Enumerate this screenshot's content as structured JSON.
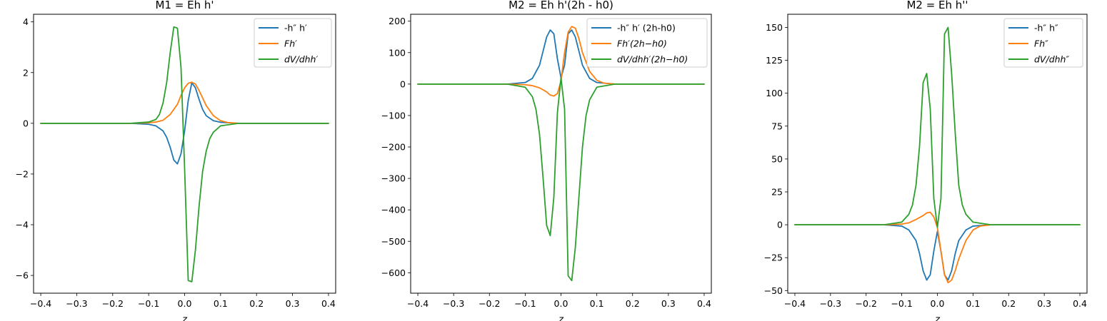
{
  "colors": {
    "blue": "#1f77b4",
    "orange": "#ff7f0e",
    "green": "#2ca02c"
  },
  "chart_data": [
    {
      "type": "line",
      "title": "M1 = Eh h'",
      "xlabel": "z",
      "ylabel": "",
      "xlim": [
        -0.42,
        0.42
      ],
      "ylim": [
        -6.7,
        4.3
      ],
      "xticks": [
        -0.4,
        -0.3,
        -0.2,
        -0.1,
        0.0,
        0.1,
        0.2,
        0.3,
        0.4
      ],
      "xtick_labels": [
        "−0.4",
        "−0.3",
        "−0.2",
        "−0.1",
        "0.0",
        "0.1",
        "0.2",
        "0.3",
        "0.4"
      ],
      "yticks": [
        -6,
        -4,
        -2,
        0,
        2,
        4
      ],
      "ytick_labels": [
        "−6",
        "−4",
        "−2",
        "0",
        "2",
        "4"
      ],
      "legend_position": "top-right",
      "series": [
        {
          "name": "-h'' h'",
          "color": "#1f77b4",
          "x": [
            -0.4,
            -0.15,
            -0.1,
            -0.08,
            -0.06,
            -0.05,
            -0.04,
            -0.03,
            -0.02,
            -0.01,
            0.0,
            0.01,
            0.02,
            0.03,
            0.04,
            0.05,
            0.06,
            0.08,
            0.1,
            0.15,
            0.4
          ],
          "y": [
            0,
            0,
            -0.04,
            -0.1,
            -0.3,
            -0.55,
            -0.95,
            -1.45,
            -1.6,
            -1.2,
            -0.3,
            0.9,
            1.6,
            1.4,
            0.95,
            0.55,
            0.3,
            0.1,
            0.04,
            0,
            0
          ]
        },
        {
          "name": "Fh'",
          "color": "#ff7f0e",
          "x": [
            -0.4,
            -0.15,
            -0.1,
            -0.08,
            -0.06,
            -0.04,
            -0.02,
            -0.01,
            0.0,
            0.01,
            0.02,
            0.03,
            0.04,
            0.05,
            0.06,
            0.08,
            0.1,
            0.12,
            0.15,
            0.4
          ],
          "y": [
            0,
            0,
            0.02,
            0.05,
            0.12,
            0.35,
            0.75,
            1.1,
            1.4,
            1.58,
            1.62,
            1.55,
            1.3,
            1.0,
            0.7,
            0.3,
            0.1,
            0.03,
            0,
            0
          ]
        },
        {
          "name": "dV/dhh'",
          "color": "#2ca02c",
          "x": [
            -0.4,
            -0.15,
            -0.1,
            -0.08,
            -0.07,
            -0.06,
            -0.05,
            -0.04,
            -0.03,
            -0.02,
            -0.01,
            0.0,
            0.01,
            0.02,
            0.03,
            0.04,
            0.05,
            0.06,
            0.07,
            0.08,
            0.1,
            0.15,
            0.4
          ],
          "y": [
            0,
            0,
            0.05,
            0.15,
            0.35,
            0.8,
            1.6,
            2.8,
            3.8,
            3.75,
            2.2,
            -1.8,
            -6.2,
            -6.25,
            -5.0,
            -3.3,
            -1.9,
            -1.1,
            -0.6,
            -0.35,
            -0.1,
            0,
            0
          ]
        }
      ]
    },
    {
      "type": "line",
      "title": "M2 = Eh h'(2h - h0)",
      "xlabel": "z",
      "ylabel": "",
      "xlim": [
        -0.42,
        0.42
      ],
      "ylim": [
        -665,
        222
      ],
      "xticks": [
        -0.4,
        -0.3,
        -0.2,
        -0.1,
        0.0,
        0.1,
        0.2,
        0.3,
        0.4
      ],
      "xtick_labels": [
        "−0.4",
        "−0.3",
        "−0.2",
        "−0.1",
        "0.0",
        "0.1",
        "0.2",
        "0.3",
        "0.4"
      ],
      "yticks": [
        -600,
        -500,
        -400,
        -300,
        -200,
        -100,
        0,
        100,
        200
      ],
      "ytick_labels": [
        "−600",
        "−500",
        "−400",
        "−300",
        "−200",
        "−100",
        "0",
        "100",
        "200"
      ],
      "legend_position": "top-right",
      "series": [
        {
          "name": "-h'' h' (2h-h0)",
          "color": "#1f77b4",
          "x": [
            -0.4,
            -0.15,
            -0.1,
            -0.08,
            -0.06,
            -0.05,
            -0.04,
            -0.03,
            -0.02,
            -0.01,
            0.0,
            0.01,
            0.02,
            0.03,
            0.04,
            0.05,
            0.06,
            0.08,
            0.1,
            0.15,
            0.4
          ],
          "y": [
            0,
            0,
            5,
            18,
            60,
            105,
            150,
            172,
            160,
            80,
            20,
            60,
            160,
            172,
            150,
            105,
            60,
            18,
            5,
            0,
            0
          ]
        },
        {
          "name": "Fh'(2h−h0)",
          "color": "#ff7f0e",
          "x": [
            -0.4,
            -0.15,
            -0.1,
            -0.08,
            -0.06,
            -0.04,
            -0.03,
            -0.02,
            -0.01,
            0.0,
            0.01,
            0.02,
            0.03,
            0.04,
            0.05,
            0.06,
            0.08,
            0.1,
            0.12,
            0.15,
            0.4
          ],
          "y": [
            0,
            0,
            -2,
            -5,
            -12,
            -25,
            -35,
            -38,
            -30,
            10,
            100,
            165,
            183,
            178,
            145,
            100,
            40,
            12,
            3,
            0,
            0
          ]
        },
        {
          "name": "dV/dhh'(2h−h0)",
          "color": "#2ca02c",
          "x": [
            -0.4,
            -0.15,
            -0.1,
            -0.08,
            -0.07,
            -0.06,
            -0.05,
            -0.04,
            -0.03,
            -0.02,
            -0.01,
            0.0,
            0.01,
            0.02,
            0.03,
            0.04,
            0.05,
            0.06,
            0.07,
            0.08,
            0.1,
            0.15,
            0.4
          ],
          "y": [
            0,
            0,
            -10,
            -40,
            -80,
            -160,
            -300,
            -450,
            -482,
            -360,
            -90,
            20,
            -80,
            -610,
            -625,
            -520,
            -360,
            -200,
            -100,
            -50,
            -10,
            0,
            0
          ]
        }
      ]
    },
    {
      "type": "line",
      "title": "M2 = Eh h''",
      "xlabel": "z",
      "ylabel": "",
      "xlim": [
        -0.42,
        0.42
      ],
      "ylim": [
        -52,
        160
      ],
      "xticks": [
        -0.4,
        -0.3,
        -0.2,
        -0.1,
        0.0,
        0.1,
        0.2,
        0.3,
        0.4
      ],
      "xtick_labels": [
        "−0.4",
        "−0.3",
        "−0.2",
        "−0.1",
        "0.0",
        "0.1",
        "0.2",
        "0.3",
        "0.4"
      ],
      "yticks": [
        -50,
        -25,
        0,
        25,
        50,
        75,
        100,
        125,
        150
      ],
      "ytick_labels": [
        "−50",
        "−25",
        "0",
        "25",
        "50",
        "75",
        "100",
        "125",
        "150"
      ],
      "legend_position": "top-right",
      "series": [
        {
          "name": "-h'' h''",
          "color": "#1f77b4",
          "x": [
            -0.4,
            -0.15,
            -0.1,
            -0.08,
            -0.06,
            -0.05,
            -0.04,
            -0.03,
            -0.02,
            -0.01,
            0.0,
            0.01,
            0.02,
            0.03,
            0.04,
            0.05,
            0.06,
            0.08,
            0.1,
            0.15,
            0.4
          ],
          "y": [
            0,
            0,
            -1,
            -4,
            -12,
            -22,
            -35,
            -42,
            -38,
            -20,
            -5,
            -20,
            -38,
            -42,
            -35,
            -22,
            -12,
            -4,
            -1,
            0,
            0
          ]
        },
        {
          "name": "Fh''",
          "color": "#ff7f0e",
          "x": [
            -0.4,
            -0.15,
            -0.1,
            -0.08,
            -0.06,
            -0.04,
            -0.03,
            -0.02,
            -0.01,
            0.0,
            0.01,
            0.02,
            0.03,
            0.04,
            0.05,
            0.06,
            0.08,
            0.1,
            0.12,
            0.15,
            0.4
          ],
          "y": [
            0,
            0,
            0.5,
            1.5,
            4,
            7,
            9,
            9.5,
            6,
            -2,
            -20,
            -38,
            -44,
            -42,
            -35,
            -26,
            -12,
            -4,
            -1,
            0,
            0
          ]
        },
        {
          "name": "dV/dhh''",
          "color": "#2ca02c",
          "x": [
            -0.4,
            -0.15,
            -0.1,
            -0.08,
            -0.07,
            -0.06,
            -0.05,
            -0.04,
            -0.03,
            -0.02,
            -0.01,
            0.0,
            0.01,
            0.02,
            0.03,
            0.04,
            0.05,
            0.06,
            0.07,
            0.08,
            0.1,
            0.15,
            0.4
          ],
          "y": [
            0,
            0,
            2,
            8,
            15,
            30,
            60,
            108,
            115,
            88,
            20,
            -2,
            20,
            145,
            150,
            115,
            70,
            30,
            15,
            8,
            2,
            0,
            0
          ]
        }
      ]
    }
  ]
}
